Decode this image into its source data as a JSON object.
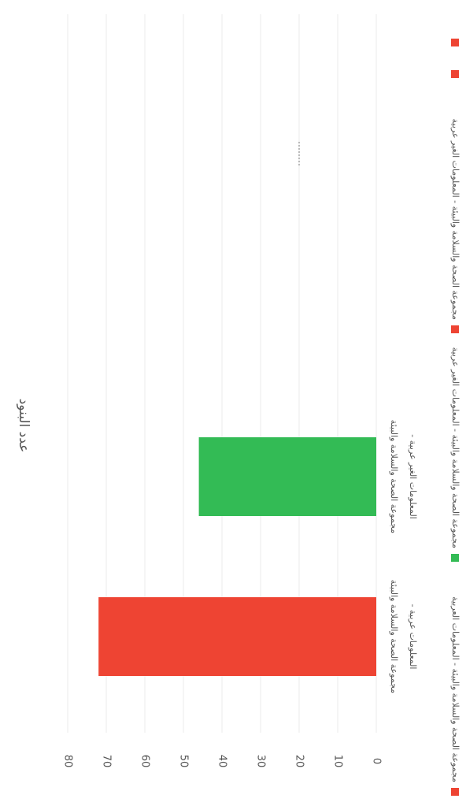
{
  "chart_data": {
    "type": "bar",
    "orientation": "rotated",
    "title": "عدد البنود",
    "categories": [
      [
        "مجموعة الصحة والسلامة والبيئة",
        "- المعلومات عربية"
      ],
      [
        "مجموعة الصحة والسلامة والبيئة",
        "- المعلومات الغير عربية"
      ]
    ],
    "values": [
      72,
      46
    ],
    "colors": [
      "#ee4433",
      "#33bb55"
    ],
    "yticks": [
      0,
      10,
      20,
      30,
      40,
      50,
      60,
      70,
      80
    ],
    "ylim": [
      0,
      80
    ],
    "grid": true,
    "legend": {
      "placement": "bottom",
      "items": [
        {
          "label": "مجموعة الصحة والسلامة والبيئة - المعلومات العربية",
          "color": "#ee4433"
        },
        {
          "label": "مجموعة الصحة والسلامة والبيئة - المعلومات الغير عربية",
          "color": "#33bb55"
        },
        {
          "label": "مجموعة الصحة والسلامة والبيئة - المعلومات الغير عربية",
          "color": "#ee4433"
        }
      ],
      "extra_markers": [
        "#ee4433"
      ]
    }
  }
}
